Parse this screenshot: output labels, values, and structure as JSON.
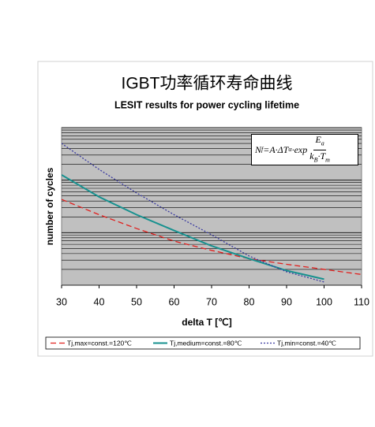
{
  "chart_data": {
    "type": "line",
    "title": "IGBT功率循环寿命曲线",
    "subtitle": "LESIT results for power cycling lifetime",
    "x_label": "delta T [℃]",
    "y_label": "number of cycles",
    "formula": {
      "n": "N",
      "n_sub": "f",
      "mid": "=A·ΔT",
      "exp_sup": "α",
      "exp": "·exp",
      "num": "E",
      "num_sub": "a",
      "den": "k",
      "den_sub": "B",
      "den_mid": "·T",
      "den_sub2": "m"
    },
    "x": [
      30,
      40,
      50,
      60,
      70,
      80,
      90,
      100,
      110
    ],
    "xlim": [
      30,
      110
    ],
    "xticks": [
      30,
      40,
      50,
      60,
      70,
      80,
      90,
      100,
      110
    ],
    "ylim": [
      1,
      1000
    ],
    "yticks": [
      1,
      10,
      100,
      1000
    ],
    "log_scale_y": true,
    "grid": true,
    "series": [
      {
        "name": "Tj,max=const.=120℃",
        "color": "#e0201e",
        "dash": "dashed",
        "values": [
          43,
          22,
          12,
          6.9,
          4.6,
          3.2,
          2.5,
          2.0,
          1.6
        ]
      },
      {
        "name": "Tj,medium=const.=80℃",
        "color": "#17918f",
        "dash": "solid",
        "values": [
          126,
          48,
          22,
          11,
          5.6,
          3.2,
          1.9,
          1.3,
          null
        ]
      },
      {
        "name": "Tj,min=const.=40℃",
        "color": "#3a3aa0",
        "dash": "dotted",
        "values": [
          501,
          160,
          57,
          22,
          9.1,
          3.6,
          1.8,
          1.15,
          null
        ]
      }
    ]
  }
}
